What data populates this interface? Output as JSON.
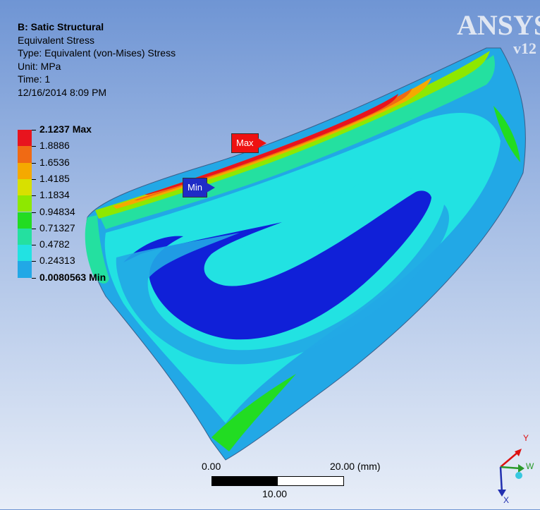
{
  "analysis": {
    "title": "B: Satic Structural",
    "result": "Equivalent Stress",
    "type": "Type: Equivalent (von-Mises) Stress",
    "unit": "Unit: MPa",
    "time": "Time: 1",
    "date": "12/16/2014 8:09 PM"
  },
  "brand": {
    "name": "ANSYS",
    "version": "v12"
  },
  "legend": {
    "labels": [
      "2.1237 Max",
      "1.8886",
      "1.6536",
      "1.4185",
      "1.1834",
      "0.94834",
      "0.71327",
      "0.4782",
      "0.24313",
      "0.0080563 Min"
    ],
    "colors": [
      "#e8141e",
      "#f06a14",
      "#f5a900",
      "#d8e000",
      "#8ee800",
      "#22dc22",
      "#24e0a0",
      "#22e2e2",
      "#22a8e6",
      "#1020d8"
    ]
  },
  "probes": {
    "max": "Max",
    "min": "Min"
  },
  "scale_bar": {
    "start": "0.00",
    "end": "20.00 (mm)",
    "mid": "10.00"
  },
  "triad": {
    "y": "Y",
    "z": "W",
    "x": "X"
  },
  "colors": {
    "background_top": "#6f95d4",
    "background_bottom": "#e8eef8"
  }
}
